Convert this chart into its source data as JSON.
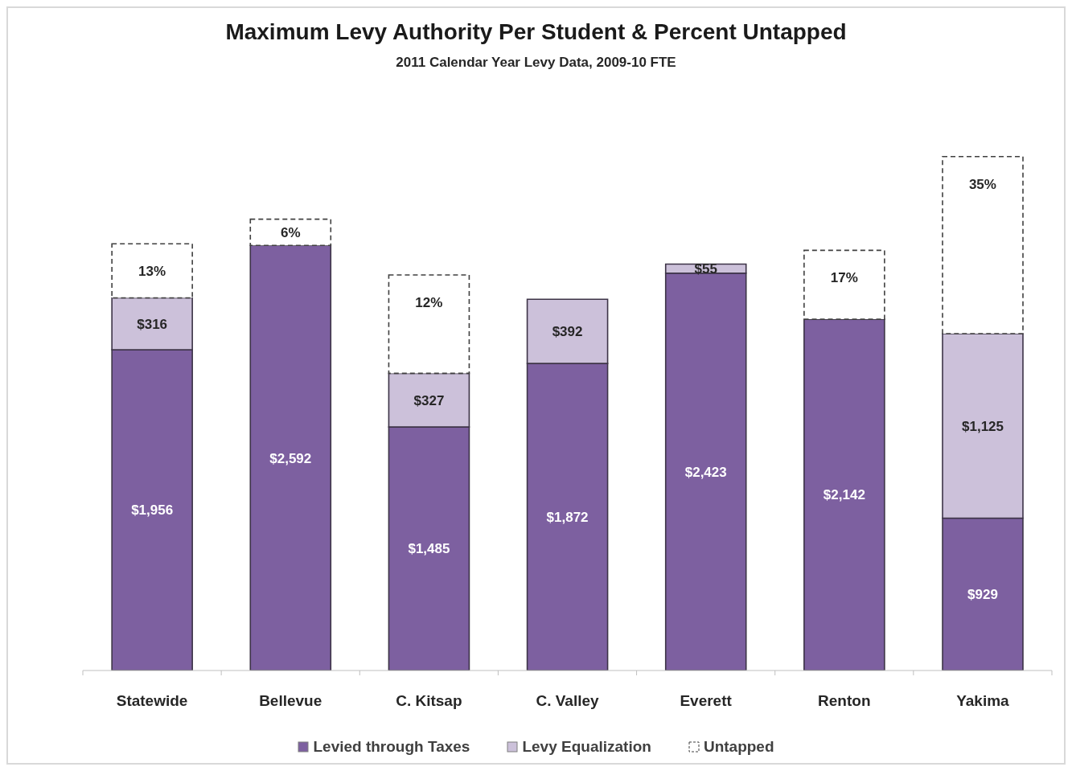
{
  "chart_data": {
    "type": "bar",
    "title": "Maximum Levy Authority Per Student & Percent Untapped",
    "subtitle": "2011 Calendar Year Levy Data, 2009-10 FTE",
    "categories": [
      "Statewide",
      "Bellevue",
      "C. Kitsap",
      "C. Valley",
      "Everett",
      "Renton",
      "Yakima"
    ],
    "stacked": true,
    "legend": "bottom",
    "series": [
      {
        "name": "Levied through Taxes",
        "color": "#7d60a0",
        "values": [
          1956,
          2592,
          1485,
          1872,
          2423,
          2142,
          929
        ],
        "value_labels": [
          "$1,956",
          "$2,592",
          "$1,485",
          "$1,872",
          "$2,423",
          "$2,142",
          "$929"
        ]
      },
      {
        "name": "Levy Equalization",
        "color": "#ccc1da",
        "values": [
          316,
          null,
          327,
          392,
          55,
          null,
          1125
        ],
        "value_labels": [
          "$316",
          null,
          "$327",
          "$392",
          "$55",
          null,
          "$1,125"
        ]
      },
      {
        "name": "Untapped",
        "color": "#ffffff",
        "line_style": "dashed",
        "values": [
          330,
          160,
          600,
          null,
          null,
          420,
          1080
        ]
      }
    ],
    "annotations": [
      {
        "text": "13%",
        "x": "Statewide",
        "y": 2602
      },
      {
        "text": "6%",
        "x": "Bellevue",
        "y": 2752
      },
      {
        "text": "12%",
        "x": "C. Kitsap",
        "y": 2412
      },
      {
        "text": "17%",
        "x": "Renton",
        "y": 2562
      },
      {
        "text": "35%",
        "x": "Yakima",
        "y": 3134
      }
    ]
  }
}
